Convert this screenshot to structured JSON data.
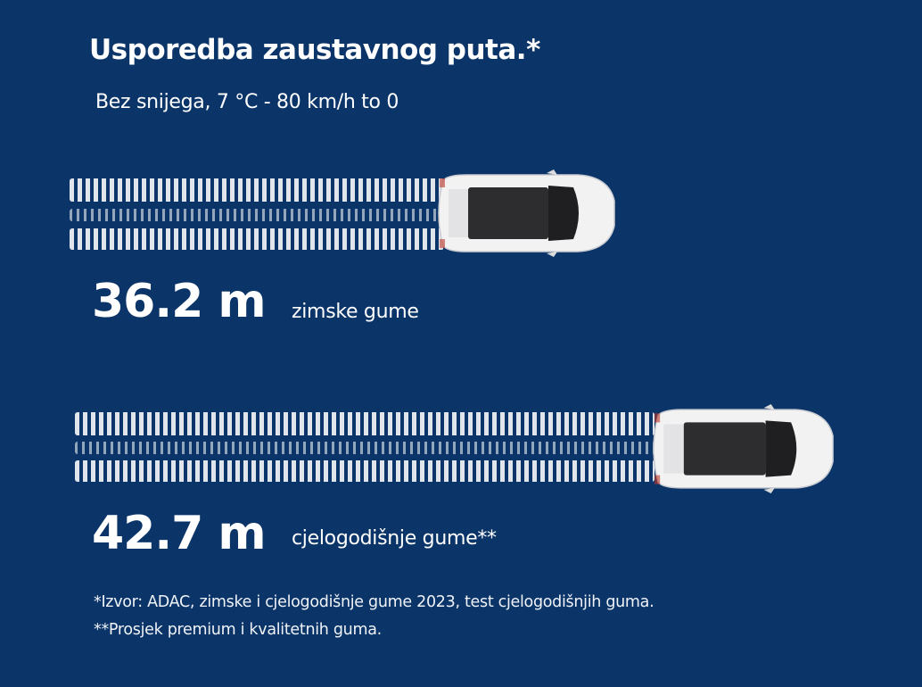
{
  "title": "Usporedba zaustavnog puta.*",
  "subtitle": "Bez snijega, 7 °C - 80 km/h to 0",
  "comparisons": [
    {
      "distance": "36.2 m",
      "label": "zimske gume",
      "distance_value_m": 36.2
    },
    {
      "distance": "42.7 m",
      "label": "cjelogodišnje gume**",
      "distance_value_m": 42.7
    }
  ],
  "footnotes": [
    "*Izvor: ADAC, zimske i cjelogodišnje gume 2023, test cjelogodišnjih guma.",
    "**Prosjek premium i kvalitetnih guma."
  ],
  "colors": {
    "background": "#0b3468",
    "text": "#ffffff",
    "car": "#f2f2f2"
  },
  "icons": [
    "tire-track-icon",
    "car-top-view-icon"
  ]
}
